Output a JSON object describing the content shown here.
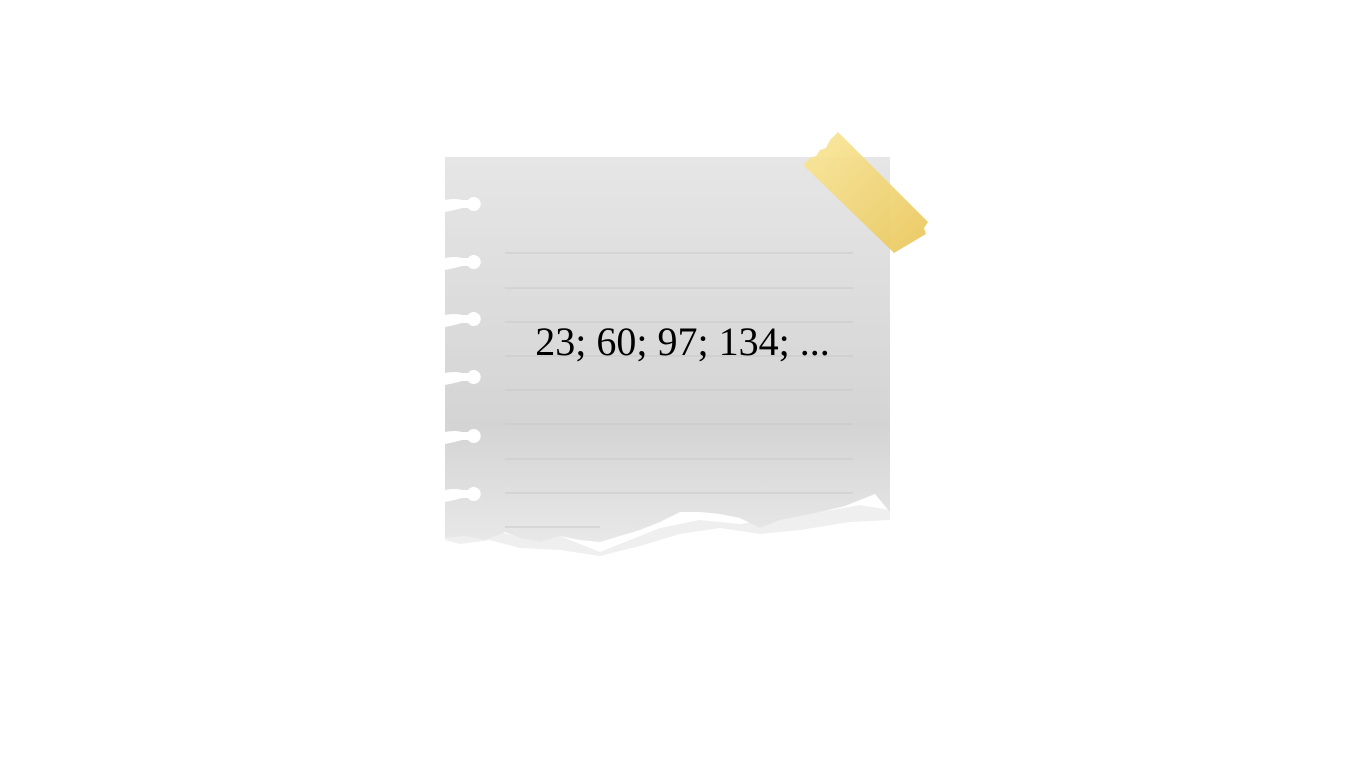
{
  "note": {
    "sequence": "23; 60; 97; 134; ...",
    "paper_color": "#e3e3e3",
    "tape_color": "#f2d36b"
  }
}
